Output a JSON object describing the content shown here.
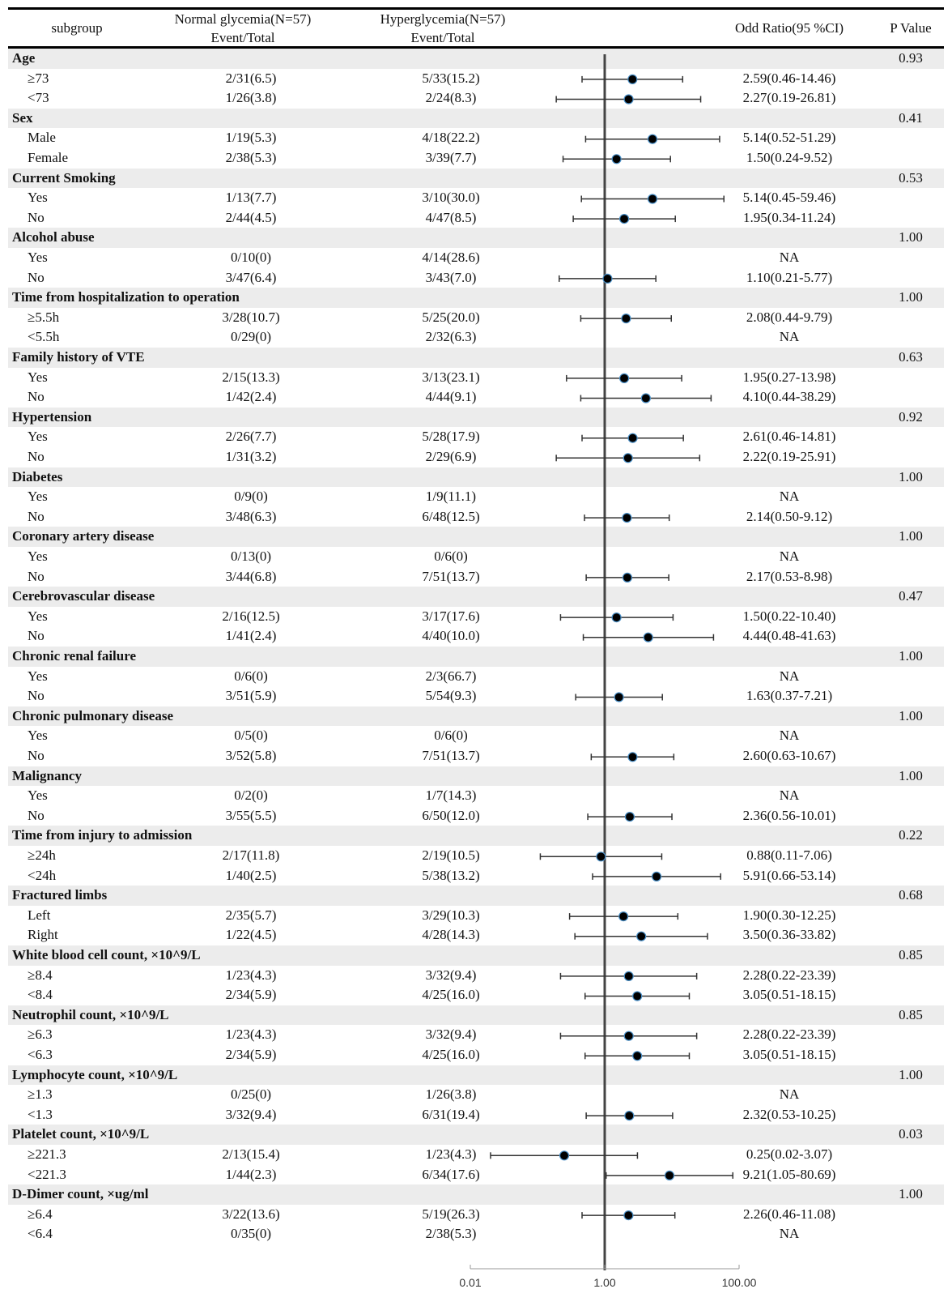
{
  "header": {
    "subgroup": "subgroup",
    "normal_title": "Normal glycemia(N=57)",
    "normal_sub": "Event/Total",
    "hyper_title": "Hyperglycemia(N=57)",
    "hyper_sub": "Event/Total",
    "or_title": "Odd Ratio(95 %CI)",
    "p_title": "P Value"
  },
  "chart_data": {
    "type": "forest",
    "x_scale": "log10",
    "xlim": [
      0.01,
      100
    ],
    "reference_line": 1,
    "x_ticks": [
      "0.01",
      "1.00",
      "100.00"
    ],
    "colors": {
      "marker": "#000000",
      "marker_edge": "#4a90c8",
      "ci_line": "#333333",
      "ref_line": "#444444",
      "band": "#ececec"
    },
    "rows": [
      {
        "kind": "group",
        "label": "Age",
        "p": "0.93"
      },
      {
        "kind": "sub",
        "label": "≥73",
        "normal": "2/31(6.5)",
        "hyper": "5/33(15.2)",
        "or_text": "2.59(0.46-14.46)",
        "or": 2.59,
        "lo": 0.46,
        "hi": 14.46
      },
      {
        "kind": "sub",
        "label": "<73",
        "normal": "1/26(3.8)",
        "hyper": "2/24(8.3)",
        "or_text": "2.27(0.19-26.81)",
        "or": 2.27,
        "lo": 0.19,
        "hi": 26.81
      },
      {
        "kind": "group",
        "label": "Sex",
        "p": "0.41"
      },
      {
        "kind": "sub",
        "label": "Male",
        "normal": "1/19(5.3)",
        "hyper": "4/18(22.2)",
        "or_text": "5.14(0.52-51.29)",
        "or": 5.14,
        "lo": 0.52,
        "hi": 51.29
      },
      {
        "kind": "sub",
        "label": "Female",
        "normal": "2/38(5.3)",
        "hyper": "3/39(7.7)",
        "or_text": "1.50(0.24-9.52)",
        "or": 1.5,
        "lo": 0.24,
        "hi": 9.52
      },
      {
        "kind": "group",
        "label": "Current Smoking",
        "p": "0.53"
      },
      {
        "kind": "sub",
        "label": "Yes",
        "normal": "1/13(7.7)",
        "hyper": "3/10(30.0)",
        "or_text": "5.14(0.45-59.46)",
        "or": 5.14,
        "lo": 0.45,
        "hi": 59.46
      },
      {
        "kind": "sub",
        "label": "No",
        "normal": "2/44(4.5)",
        "hyper": "4/47(8.5)",
        "or_text": "1.95(0.34-11.24)",
        "or": 1.95,
        "lo": 0.34,
        "hi": 11.24
      },
      {
        "kind": "group",
        "label": "Alcohol abuse",
        "p": "1.00"
      },
      {
        "kind": "sub",
        "label": "Yes",
        "normal": "0/10(0)",
        "hyper": "4/14(28.6)",
        "or_text": "NA",
        "or": null,
        "lo": null,
        "hi": null
      },
      {
        "kind": "sub",
        "label": "No",
        "normal": "3/47(6.4)",
        "hyper": "3/43(7.0)",
        "or_text": "1.10(0.21-5.77)",
        "or": 1.1,
        "lo": 0.21,
        "hi": 5.77
      },
      {
        "kind": "group",
        "label": "Time from hospitalization to operation",
        "p": "1.00"
      },
      {
        "kind": "sub",
        "label": "≥5.5h",
        "normal": "3/28(10.7)",
        "hyper": "5/25(20.0)",
        "or_text": "2.08(0.44-9.79)",
        "or": 2.08,
        "lo": 0.44,
        "hi": 9.79
      },
      {
        "kind": "sub",
        "label": "<5.5h",
        "normal": "0/29(0)",
        "hyper": "2/32(6.3)",
        "or_text": "NA",
        "or": null,
        "lo": null,
        "hi": null
      },
      {
        "kind": "group",
        "label": "Family history of VTE",
        "p": "0.63"
      },
      {
        "kind": "sub",
        "label": "Yes",
        "normal": "2/15(13.3)",
        "hyper": "3/13(23.1)",
        "or_text": "1.95(0.27-13.98)",
        "or": 1.95,
        "lo": 0.27,
        "hi": 13.98
      },
      {
        "kind": "sub",
        "label": "No",
        "normal": "1/42(2.4)",
        "hyper": "4/44(9.1)",
        "or_text": "4.10(0.44-38.29)",
        "or": 4.1,
        "lo": 0.44,
        "hi": 38.29
      },
      {
        "kind": "group",
        "label": "Hypertension",
        "p": "0.92"
      },
      {
        "kind": "sub",
        "label": "Yes",
        "normal": "2/26(7.7)",
        "hyper": "5/28(17.9)",
        "or_text": "2.61(0.46-14.81)",
        "or": 2.61,
        "lo": 0.46,
        "hi": 14.81
      },
      {
        "kind": "sub",
        "label": "No",
        "normal": "1/31(3.2)",
        "hyper": "2/29(6.9)",
        "or_text": "2.22(0.19-25.91)",
        "or": 2.22,
        "lo": 0.19,
        "hi": 25.91
      },
      {
        "kind": "group",
        "label": "Diabetes",
        "p": "1.00"
      },
      {
        "kind": "sub",
        "label": "Yes",
        "normal": "0/9(0)",
        "hyper": "1/9(11.1)",
        "or_text": "NA",
        "or": null,
        "lo": null,
        "hi": null
      },
      {
        "kind": "sub",
        "label": "No",
        "normal": "3/48(6.3)",
        "hyper": "6/48(12.5)",
        "or_text": "2.14(0.50-9.12)",
        "or": 2.14,
        "lo": 0.5,
        "hi": 9.12
      },
      {
        "kind": "group",
        "label": "Coronary artery disease",
        "p": "1.00"
      },
      {
        "kind": "sub",
        "label": "Yes",
        "normal": "0/13(0)",
        "hyper": "0/6(0)",
        "or_text": "NA",
        "or": null,
        "lo": null,
        "hi": null
      },
      {
        "kind": "sub",
        "label": "No",
        "normal": "3/44(6.8)",
        "hyper": "7/51(13.7)",
        "or_text": "2.17(0.53-8.98)",
        "or": 2.17,
        "lo": 0.53,
        "hi": 8.98
      },
      {
        "kind": "group",
        "label": "Cerebrovascular disease",
        "p": "0.47"
      },
      {
        "kind": "sub",
        "label": "Yes",
        "normal": "2/16(12.5)",
        "hyper": "3/17(17.6)",
        "or_text": "1.50(0.22-10.40)",
        "or": 1.5,
        "lo": 0.22,
        "hi": 10.4
      },
      {
        "kind": "sub",
        "label": "No",
        "normal": "1/41(2.4)",
        "hyper": "4/40(10.0)",
        "or_text": "4.44(0.48-41.63)",
        "or": 4.44,
        "lo": 0.48,
        "hi": 41.63
      },
      {
        "kind": "group",
        "label": "Chronic renal failure",
        "p": "1.00"
      },
      {
        "kind": "sub",
        "label": "Yes",
        "normal": "0/6(0)",
        "hyper": "2/3(66.7)",
        "or_text": "NA",
        "or": null,
        "lo": null,
        "hi": null
      },
      {
        "kind": "sub",
        "label": "No",
        "normal": "3/51(5.9)",
        "hyper": "5/54(9.3)",
        "or_text": "1.63(0.37-7.21)",
        "or": 1.63,
        "lo": 0.37,
        "hi": 7.21
      },
      {
        "kind": "group",
        "label": "Chronic pulmonary disease",
        "p": "1.00"
      },
      {
        "kind": "sub",
        "label": "Yes",
        "normal": "0/5(0)",
        "hyper": "0/6(0)",
        "or_text": "NA",
        "or": null,
        "lo": null,
        "hi": null
      },
      {
        "kind": "sub",
        "label": "No",
        "normal": "3/52(5.8)",
        "hyper": "7/51(13.7)",
        "or_text": "2.60(0.63-10.67)",
        "or": 2.6,
        "lo": 0.63,
        "hi": 10.67
      },
      {
        "kind": "group",
        "label": "Malignancy",
        "p": "1.00"
      },
      {
        "kind": "sub",
        "label": "Yes",
        "normal": "0/2(0)",
        "hyper": "1/7(14.3)",
        "or_text": "NA",
        "or": null,
        "lo": null,
        "hi": null
      },
      {
        "kind": "sub",
        "label": "No",
        "normal": "3/55(5.5)",
        "hyper": "6/50(12.0)",
        "or_text": "2.36(0.56-10.01)",
        "or": 2.36,
        "lo": 0.56,
        "hi": 10.01
      },
      {
        "kind": "group",
        "label": "Time from injury to admission",
        "p": "0.22"
      },
      {
        "kind": "sub",
        "label": "≥24h",
        "normal": "2/17(11.8)",
        "hyper": "2/19(10.5)",
        "or_text": "0.88(0.11-7.06)",
        "or": 0.88,
        "lo": 0.11,
        "hi": 7.06
      },
      {
        "kind": "sub",
        "label": "<24h",
        "normal": "1/40(2.5)",
        "hyper": "5/38(13.2)",
        "or_text": "5.91(0.66-53.14)",
        "or": 5.91,
        "lo": 0.66,
        "hi": 53.14
      },
      {
        "kind": "group",
        "label": "Fractured limbs",
        "p": "0.68"
      },
      {
        "kind": "sub",
        "label": "Left",
        "normal": "2/35(5.7)",
        "hyper": "3/29(10.3)",
        "or_text": "1.90(0.30-12.25)",
        "or": 1.9,
        "lo": 0.3,
        "hi": 12.25
      },
      {
        "kind": "sub",
        "label": "Right",
        "normal": "1/22(4.5)",
        "hyper": "4/28(14.3)",
        "or_text": "3.50(0.36-33.82)",
        "or": 3.5,
        "lo": 0.36,
        "hi": 33.82
      },
      {
        "kind": "group",
        "label": "White blood cell count, ×10^9/L",
        "p": "0.85"
      },
      {
        "kind": "sub",
        "label": "≥8.4",
        "normal": "1/23(4.3)",
        "hyper": "3/32(9.4)",
        "or_text": "2.28(0.22-23.39)",
        "or": 2.28,
        "lo": 0.22,
        "hi": 23.39
      },
      {
        "kind": "sub",
        "label": "<8.4",
        "normal": "2/34(5.9)",
        "hyper": "4/25(16.0)",
        "or_text": "3.05(0.51-18.15)",
        "or": 3.05,
        "lo": 0.51,
        "hi": 18.15
      },
      {
        "kind": "group",
        "label": "Neutrophil count, ×10^9/L",
        "p": "0.85"
      },
      {
        "kind": "sub",
        "label": "≥6.3",
        "normal": "1/23(4.3)",
        "hyper": "3/32(9.4)",
        "or_text": "2.28(0.22-23.39)",
        "or": 2.28,
        "lo": 0.22,
        "hi": 23.39
      },
      {
        "kind": "sub",
        "label": "<6.3",
        "normal": "2/34(5.9)",
        "hyper": "4/25(16.0)",
        "or_text": "3.05(0.51-18.15)",
        "or": 3.05,
        "lo": 0.51,
        "hi": 18.15
      },
      {
        "kind": "group",
        "label": "Lymphocyte count, ×10^9/L",
        "p": "1.00"
      },
      {
        "kind": "sub",
        "label": "≥1.3",
        "normal": "0/25(0)",
        "hyper": "1/26(3.8)",
        "or_text": "NA",
        "or": null,
        "lo": null,
        "hi": null
      },
      {
        "kind": "sub",
        "label": "<1.3",
        "normal": "3/32(9.4)",
        "hyper": "6/31(19.4)",
        "or_text": "2.32(0.53-10.25)",
        "or": 2.32,
        "lo": 0.53,
        "hi": 10.25
      },
      {
        "kind": "group",
        "label": "Platelet count, ×10^9/L",
        "p": "0.03"
      },
      {
        "kind": "sub",
        "label": "≥221.3",
        "normal": "2/13(15.4)",
        "hyper": "1/23(4.3)",
        "or_text": "0.25(0.02-3.07)",
        "or": 0.25,
        "lo": 0.02,
        "hi": 3.07
      },
      {
        "kind": "sub",
        "label": "<221.3",
        "normal": "1/44(2.3)",
        "hyper": "6/34(17.6)",
        "or_text": "9.21(1.05-80.69)",
        "or": 9.21,
        "lo": 1.05,
        "hi": 80.69
      },
      {
        "kind": "group",
        "label": "D-Dimer count, ×ug/ml",
        "p": "1.00"
      },
      {
        "kind": "sub",
        "label": "≥6.4",
        "normal": "3/22(13.6)",
        "hyper": "5/19(26.3)",
        "or_text": "2.26(0.46-11.08)",
        "or": 2.26,
        "lo": 0.46,
        "hi": 11.08
      },
      {
        "kind": "sub",
        "label": "<6.4",
        "normal": "0/35(0)",
        "hyper": "2/38(5.3)",
        "or_text": "NA",
        "or": null,
        "lo": null,
        "hi": null
      }
    ]
  }
}
